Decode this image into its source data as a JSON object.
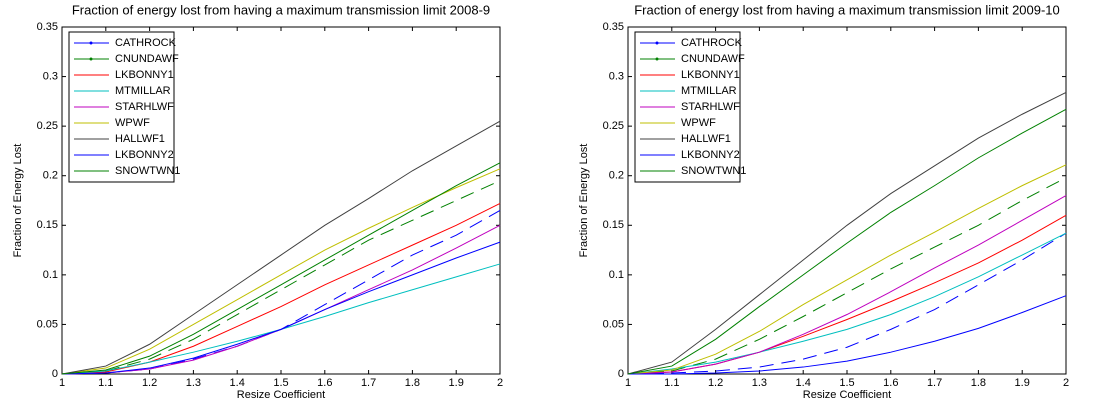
{
  "chart_data": [
    {
      "type": "line",
      "title": "Fraction of energy lost from having a maximum transmission limit 2008-9",
      "xlabel": "Resize Coefficient",
      "ylabel": "Fraction of Energy Lost",
      "x": [
        1,
        1.1,
        1.2,
        1.3,
        1.4,
        1.5,
        1.6,
        1.7,
        1.8,
        1.9,
        2
      ],
      "xlim": [
        1,
        2
      ],
      "xticks": [
        1,
        1.1,
        1.2,
        1.3,
        1.4,
        1.5,
        1.6,
        1.7,
        1.8,
        1.9,
        2
      ],
      "ylim": [
        0,
        0.35
      ],
      "yticks": [
        0,
        0.05,
        0.1,
        0.15,
        0.2,
        0.25,
        0.3,
        0.35
      ],
      "legend": "upper left",
      "series": [
        {
          "name": "CATHROCK",
          "color": "#0000ff",
          "linestyle": "--",
          "values": [
            0,
            0.001,
            0.005,
            0.015,
            0.028,
            0.045,
            0.07,
            0.095,
            0.12,
            0.14,
            0.165
          ]
        },
        {
          "name": "CNUNDAWF",
          "color": "#008000",
          "linestyle": "--",
          "values": [
            0,
            0.003,
            0.015,
            0.035,
            0.06,
            0.085,
            0.11,
            0.135,
            0.155,
            0.175,
            0.195
          ]
        },
        {
          "name": "LKBONNY1",
          "color": "#ff0000",
          "linestyle": "-",
          "values": [
            0,
            0.002,
            0.012,
            0.028,
            0.048,
            0.068,
            0.09,
            0.11,
            0.13,
            0.15,
            0.172
          ]
        },
        {
          "name": "MTMILLAR",
          "color": "#00bfbf",
          "linestyle": "-",
          "values": [
            0,
            0.003,
            0.012,
            0.022,
            0.033,
            0.045,
            0.058,
            0.072,
            0.085,
            0.098,
            0.111
          ]
        },
        {
          "name": "STARHLWF",
          "color": "#bf00bf",
          "linestyle": "-",
          "values": [
            0,
            0.001,
            0.005,
            0.014,
            0.028,
            0.045,
            0.065,
            0.085,
            0.105,
            0.127,
            0.15
          ]
        },
        {
          "name": "WPWF",
          "color": "#bfbf00",
          "linestyle": "-",
          "values": [
            0,
            0.006,
            0.025,
            0.05,
            0.075,
            0.1,
            0.125,
            0.147,
            0.168,
            0.188,
            0.207
          ]
        },
        {
          "name": "HALLWF1",
          "color": "#404040",
          "linestyle": "-",
          "values": [
            0,
            0.008,
            0.03,
            0.06,
            0.09,
            0.12,
            0.15,
            0.177,
            0.205,
            0.23,
            0.255
          ]
        },
        {
          "name": "LKBONNY2",
          "color": "#0000ff",
          "linestyle": "-",
          "values": [
            0,
            0.001,
            0.006,
            0.016,
            0.03,
            0.045,
            0.065,
            0.083,
            0.1,
            0.117,
            0.133
          ]
        },
        {
          "name": "SNOWTWN1",
          "color": "#008000",
          "linestyle": "-",
          "values": [
            0,
            0.004,
            0.018,
            0.04,
            0.065,
            0.09,
            0.115,
            0.14,
            0.165,
            0.19,
            0.213
          ]
        }
      ]
    },
    {
      "type": "line",
      "title": "Fraction of energy lost from having a maximum transmission limit 2009-10",
      "xlabel": "Resize Coefficient",
      "ylabel": "Fraction of Energy Lost",
      "x": [
        1,
        1.1,
        1.2,
        1.3,
        1.4,
        1.5,
        1.6,
        1.7,
        1.8,
        1.9,
        2
      ],
      "xlim": [
        1,
        2
      ],
      "xticks": [
        1,
        1.1,
        1.2,
        1.3,
        1.4,
        1.5,
        1.6,
        1.7,
        1.8,
        1.9,
        2
      ],
      "ylim": [
        0,
        0.35
      ],
      "yticks": [
        0,
        0.05,
        0.1,
        0.15,
        0.2,
        0.25,
        0.3,
        0.35
      ],
      "legend": "upper left",
      "series": [
        {
          "name": "CATHROCK",
          "color": "#0000ff",
          "linestyle": "--",
          "values": [
            0,
            0.001,
            0.003,
            0.007,
            0.015,
            0.027,
            0.045,
            0.065,
            0.09,
            0.115,
            0.142
          ]
        },
        {
          "name": "CNUNDAWF",
          "color": "#008000",
          "linestyle": "--",
          "values": [
            0,
            0.003,
            0.015,
            0.035,
            0.058,
            0.082,
            0.106,
            0.128,
            0.15,
            0.175,
            0.198
          ]
        },
        {
          "name": "LKBONNY1",
          "color": "#ff0000",
          "linestyle": "-",
          "values": [
            0,
            0.002,
            0.01,
            0.022,
            0.038,
            0.055,
            0.073,
            0.092,
            0.112,
            0.135,
            0.16
          ]
        },
        {
          "name": "MTMILLAR",
          "color": "#00bfbf",
          "linestyle": "-",
          "values": [
            0,
            0.005,
            0.012,
            0.022,
            0.033,
            0.045,
            0.06,
            0.078,
            0.098,
            0.12,
            0.142
          ]
        },
        {
          "name": "STARHLWF",
          "color": "#bf00bf",
          "linestyle": "-",
          "values": [
            0,
            0.002,
            0.01,
            0.022,
            0.04,
            0.06,
            0.083,
            0.107,
            0.13,
            0.155,
            0.18
          ]
        },
        {
          "name": "WPWF",
          "color": "#bfbf00",
          "linestyle": "-",
          "values": [
            0,
            0.004,
            0.02,
            0.043,
            0.07,
            0.095,
            0.12,
            0.143,
            0.167,
            0.19,
            0.211
          ]
        },
        {
          "name": "HALLWF1",
          "color": "#404040",
          "linestyle": "-",
          "values": [
            0,
            0.012,
            0.045,
            0.08,
            0.115,
            0.15,
            0.182,
            0.21,
            0.238,
            0.262,
            0.284
          ]
        },
        {
          "name": "LKBONNY2",
          "color": "#0000ff",
          "linestyle": "-",
          "values": [
            0,
            0,
            0.001,
            0.003,
            0.007,
            0.013,
            0.022,
            0.033,
            0.046,
            0.062,
            0.079
          ]
        },
        {
          "name": "SNOWTWN1",
          "color": "#008000",
          "linestyle": "-",
          "values": [
            0,
            0.008,
            0.035,
            0.068,
            0.1,
            0.132,
            0.163,
            0.19,
            0.218,
            0.243,
            0.267
          ]
        }
      ]
    }
  ]
}
